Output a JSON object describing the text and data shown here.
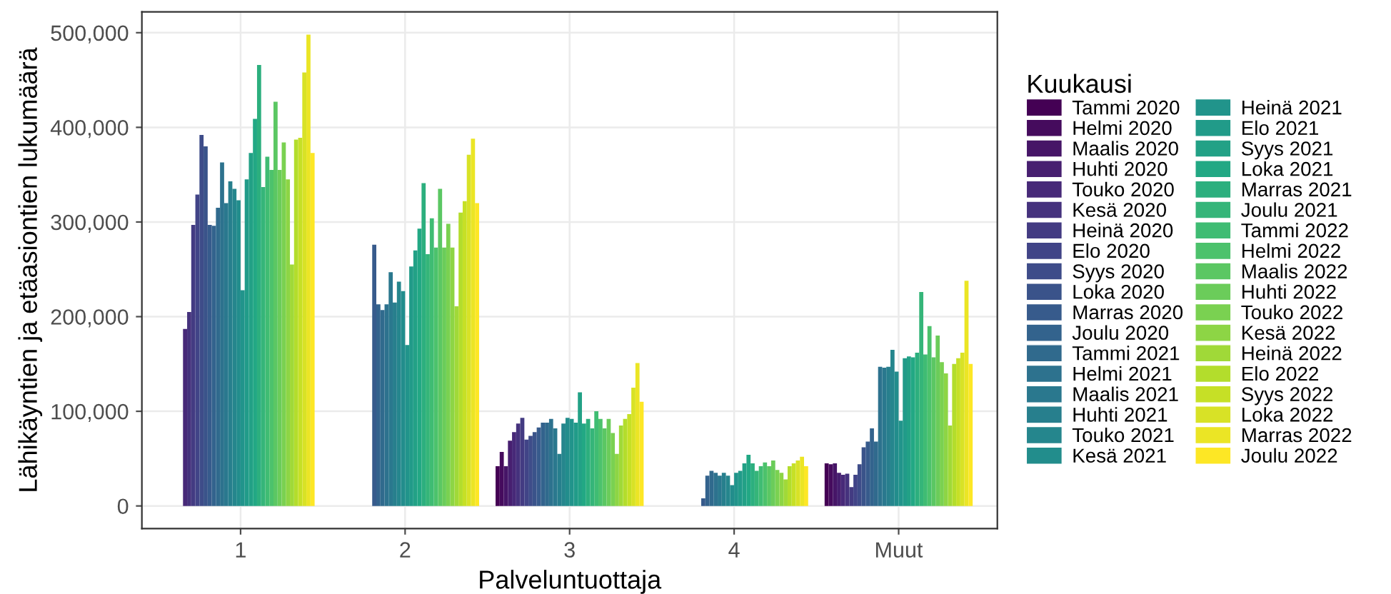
{
  "chart_data": {
    "type": "bar",
    "xlabel": "Palveluntuottaja",
    "ylabel": "Lähikäyntien ja etäasiontien lukumäärä",
    "legend_title": "Kuukausi",
    "legend": "right",
    "grid": true,
    "categories": [
      "1",
      "2",
      "3",
      "4",
      "Muut"
    ],
    "ylim": [
      -24000,
      522000
    ],
    "yticks": [
      0,
      {
        "value": 100000,
        "label": "100,000"
      },
      {
        "value": 200000,
        "label": "200,000"
      },
      {
        "value": 300000,
        "label": "300,000"
      },
      {
        "value": 400000,
        "label": "400,000"
      },
      {
        "value": 500000,
        "label": "500,000"
      }
    ],
    "series": [
      {
        "name": "Tammi 2020",
        "color": "#440154",
        "values": [
          null,
          null,
          42000,
          null,
          45000
        ]
      },
      {
        "name": "Helmi 2020",
        "color": "#450b5d",
        "values": [
          null,
          null,
          57000,
          null,
          44000
        ]
      },
      {
        "name": "Maalis 2020",
        "color": "#461567",
        "values": [
          null,
          null,
          42000,
          null,
          45000
        ]
      },
      {
        "name": "Huhti 2020",
        "color": "#471f70",
        "values": [
          null,
          null,
          69000,
          null,
          35000
        ]
      },
      {
        "name": "Touko 2020",
        "color": "#472978",
        "values": [
          187000,
          null,
          78000,
          null,
          33000
        ]
      },
      {
        "name": "Kesä 2020",
        "color": "#45327d",
        "values": [
          205000,
          null,
          87000,
          null,
          34000
        ]
      },
      {
        "name": "Heinä 2020",
        "color": "#433b82",
        "values": [
          297000,
          null,
          93000,
          null,
          20000
        ]
      },
      {
        "name": "Elo 2020",
        "color": "#414487",
        "values": [
          329000,
          null,
          70000,
          null,
          33000
        ]
      },
      {
        "name": "Syys 2020",
        "color": "#3e4c89",
        "values": [
          392000,
          null,
          74000,
          null,
          44000
        ]
      },
      {
        "name": "Loka 2020",
        "color": "#3a538a",
        "values": [
          380000,
          null,
          78000,
          null,
          62000
        ]
      },
      {
        "name": "Marras 2020",
        "color": "#375b8c",
        "values": [
          297000,
          276000,
          83000,
          8000,
          68000
        ]
      },
      {
        "name": "Joulu 2020",
        "color": "#33638d",
        "values": [
          296000,
          213000,
          88000,
          32000,
          82000
        ]
      },
      {
        "name": "Tammi 2021",
        "color": "#306a8d",
        "values": [
          315000,
          207000,
          88000,
          37000,
          68000
        ]
      },
      {
        "name": "Helmi 2021",
        "color": "#2d728e",
        "values": [
          363000,
          213000,
          92000,
          35000,
          147000
        ]
      },
      {
        "name": "Maalis 2021",
        "color": "#2a788e",
        "values": [
          320000,
          247000,
          82000,
          32000,
          146000
        ]
      },
      {
        "name": "Huhti 2021",
        "color": "#277f8d",
        "values": [
          343000,
          215000,
          55000,
          35000,
          147000
        ]
      },
      {
        "name": "Touko 2021",
        "color": "#25868d",
        "values": [
          335000,
          237000,
          87000,
          32000,
          165000
        ]
      },
      {
        "name": "Kesä 2021",
        "color": "#228d8c",
        "values": [
          323000,
          227000,
          93000,
          22000,
          142000
        ]
      },
      {
        "name": "Heinä 2021",
        "color": "#21948b",
        "values": [
          228000,
          170000,
          92000,
          35000,
          90000
        ]
      },
      {
        "name": "Elo 2021",
        "color": "#219b89",
        "values": [
          345000,
          253000,
          88000,
          37000,
          156000
        ]
      },
      {
        "name": "Syys 2021",
        "color": "#22a186",
        "values": [
          373000,
          270000,
          120000,
          45000,
          158000
        ]
      },
      {
        "name": "Loka 2021",
        "color": "#22a884",
        "values": [
          409000,
          293000,
          87000,
          54000,
          157000
        ]
      },
      {
        "name": "Marras 2021",
        "color": "#2caf7e",
        "values": [
          466000,
          341000,
          92000,
          45000,
          162000
        ]
      },
      {
        "name": "Joulu 2021",
        "color": "#35b579",
        "values": [
          337000,
          266000,
          82000,
          37000,
          226000
        ]
      },
      {
        "name": "Tammi 2022",
        "color": "#3fbc73",
        "values": [
          369000,
          304000,
          100000,
          42000,
          160000
        ]
      },
      {
        "name": "Helmi 2022",
        "color": "#4cc26c",
        "values": [
          355000,
          273000,
          92000,
          46000,
          190000
        ]
      },
      {
        "name": "Maalis 2022",
        "color": "#5bc763",
        "values": [
          427000,
          335000,
          82000,
          42000,
          157000
        ]
      },
      {
        "name": "Huhti 2022",
        "color": "#6bcc5a",
        "values": [
          355000,
          273000,
          92000,
          48000,
          180000
        ]
      },
      {
        "name": "Touko 2022",
        "color": "#7ad151",
        "values": [
          384000,
          298000,
          77000,
          38000,
          152000
        ]
      },
      {
        "name": "Kesä 2022",
        "color": "#8dd545",
        "values": [
          345000,
          273000,
          55000,
          35000,
          140000
        ]
      },
      {
        "name": "Heinä 2022",
        "color": "#a0d938",
        "values": [
          255000,
          211000,
          85000,
          28000,
          85000
        ]
      },
      {
        "name": "Elo 2022",
        "color": "#b3dd2c",
        "values": [
          387000,
          310000,
          92000,
          42000,
          150000
        ]
      },
      {
        "name": "Syys 2022",
        "color": "#c6e026",
        "values": [
          389000,
          322000,
          97000,
          45000,
          156000
        ]
      },
      {
        "name": "Loka 2022",
        "color": "#d8e226",
        "values": [
          458000,
          371000,
          125000,
          48000,
          162000
        ]
      },
      {
        "name": "Marras 2022",
        "color": "#ebe525",
        "values": [
          498000,
          388000,
          151000,
          52000,
          238000
        ]
      },
      {
        "name": "Joulu 2022",
        "color": "#fde725",
        "values": [
          373000,
          320000,
          110000,
          42000,
          150000
        ]
      }
    ]
  }
}
